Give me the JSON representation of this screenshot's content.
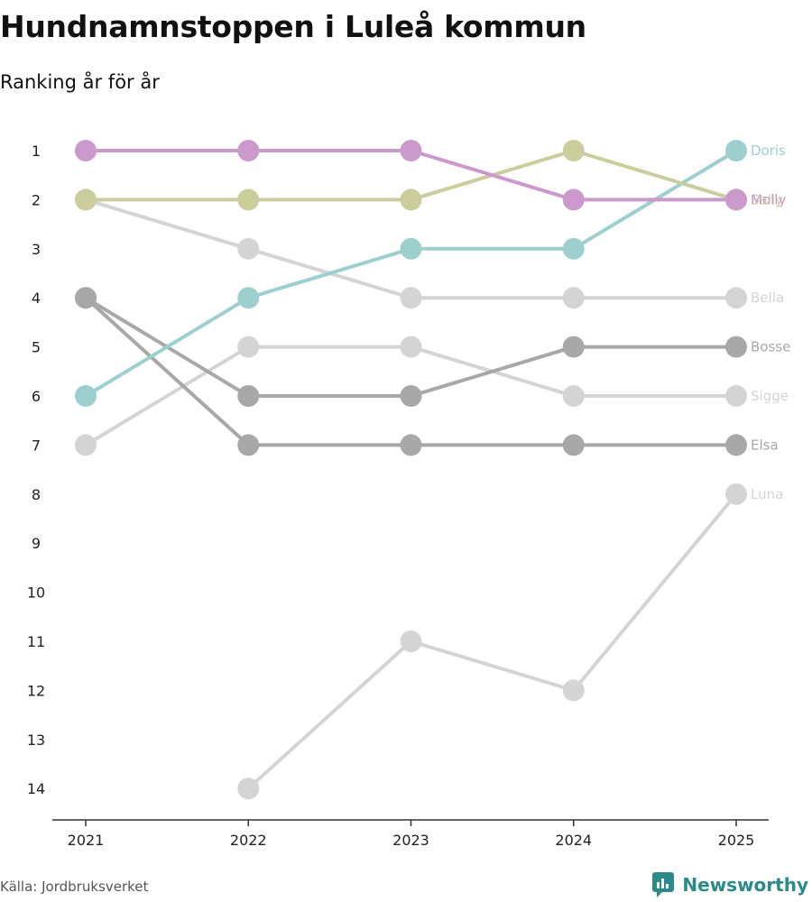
{
  "header": {
    "title": "Hundnamnstoppen i Luleå kommun",
    "subtitle": "Ranking år för år"
  },
  "footer": {
    "source": "Källa: Jordbruksverket",
    "brand": "Newsworthy",
    "brand_color": "#2b8a8a"
  },
  "chart_data": {
    "type": "line",
    "title": "Hundnamnstoppen i Luleå kommun",
    "subtitle": "Ranking år för år",
    "xlabel": "",
    "ylabel": "",
    "x": [
      "2021",
      "2022",
      "2023",
      "2024",
      "2025"
    ],
    "y_ticks": [
      1,
      2,
      3,
      4,
      5,
      6,
      7,
      8,
      9,
      10,
      11,
      12,
      13,
      14
    ],
    "ylim": [
      1,
      14
    ],
    "y_reversed": true,
    "grid": false,
    "series": [
      {
        "name": "Luna",
        "values": [
          null,
          14,
          11,
          12,
          8
        ],
        "color": "#d4d4d4"
      },
      {
        "name": "Sigge",
        "values": [
          7,
          5,
          5,
          6,
          6
        ],
        "color": "#d4d4d4"
      },
      {
        "name": "Bella",
        "values": [
          2,
          3,
          4,
          4,
          4
        ],
        "color": "#d4d4d4"
      },
      {
        "name": "Elsa",
        "values": [
          4,
          7,
          7,
          7,
          7
        ],
        "color": "#a8a8a8"
      },
      {
        "name": "Bosse",
        "values": [
          4,
          6,
          6,
          5,
          5
        ],
        "color": "#a8a8a8"
      },
      {
        "name": "Doris",
        "values": [
          6,
          4,
          3,
          3,
          1
        ],
        "color": "#9dcfcf"
      },
      {
        "name": "Sally",
        "values": [
          2,
          2,
          2,
          1,
          2
        ],
        "color": "#cbce9c"
      },
      {
        "name": "Molly",
        "values": [
          1,
          1,
          1,
          2,
          2
        ],
        "color": "#cc99cc"
      }
    ]
  }
}
